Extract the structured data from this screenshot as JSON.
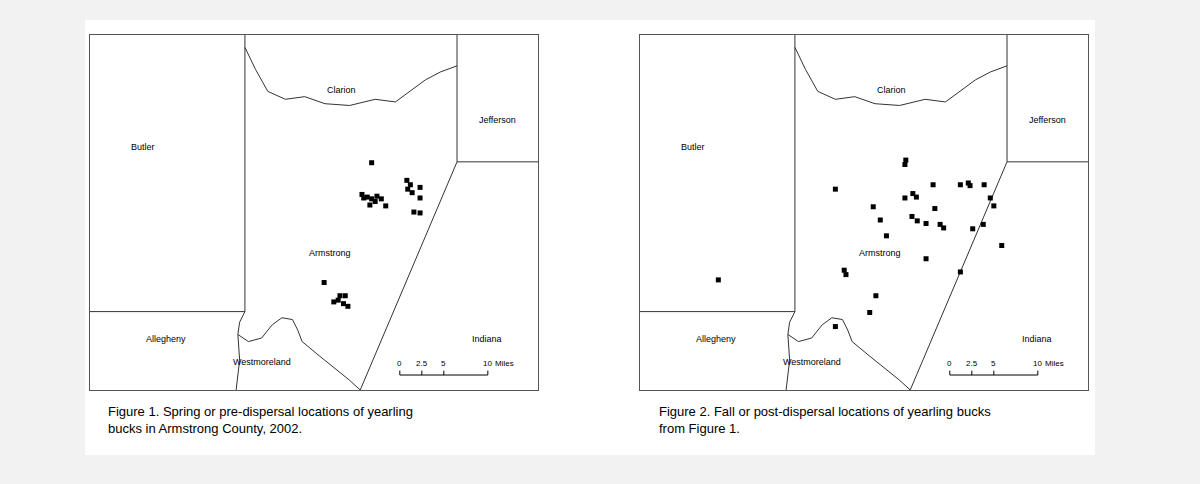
{
  "chart_data": [
    {
      "type": "scatter",
      "caption": [
        "Figure 1. Spring or pre-dispersal locations of yearling",
        "bucks in Armstrong County, 2002."
      ],
      "annotations": [
        "Clarion",
        "Jefferson",
        "Butler",
        "Armstrong",
        "Allegheny",
        "Westmoreland",
        "Indiana"
      ],
      "x": [
        32.0,
        30.9,
        31.5,
        32.0,
        32.6,
        33.1,
        31.8,
        33.6,
        31.1,
        32.4,
        36.0,
        36.4,
        37.5,
        36.6,
        37.5,
        36.8,
        37.5,
        36.1,
        26.6,
        28.4,
        27.7,
        28.2,
        28.8,
        29.3,
        29.0
      ],
      "y": [
        25.8,
        22.2,
        21.9,
        21.7,
        22.0,
        21.7,
        21.0,
        20.9,
        21.8,
        21.4,
        23.8,
        23.3,
        23.0,
        22.4,
        21.8,
        20.2,
        20.1,
        22.8,
        12.2,
        10.7,
        10.0,
        10.2,
        9.8,
        9.5,
        10.7
      ],
      "color": "#000000",
      "marker": "square",
      "xlim": [
        0,
        50.9
      ],
      "ylim": [
        0,
        40.3
      ],
      "tick_labels": false,
      "scale_bar": {
        "ticks": [
          0,
          2.5,
          5,
          10
        ],
        "unit": "Miles"
      }
    },
    {
      "type": "scatter",
      "caption": [
        "Figure 2. Fall or post-dispersal locations of yearling bucks",
        "from Figure 1."
      ],
      "annotations": [
        "Clarion",
        "Jefferson",
        "Butler",
        "Armstrong",
        "Allegheny",
        "Westmoreland",
        "Indiana"
      ],
      "x": [
        30.2,
        30.1,
        22.2,
        33.3,
        31.0,
        30.1,
        31.4,
        26.5,
        36.4,
        37.3,
        37.5,
        39.1,
        39.8,
        40.2,
        27.3,
        30.9,
        31.5,
        32.5,
        33.5,
        34.1,
        34.5,
        28.0,
        37.8,
        39.0,
        41.1,
        32.5,
        36.4,
        23.2,
        23.4,
        26.8,
        26.1,
        8.9,
        22.2
      ],
      "y": [
        26.1,
        25.6,
        22.8,
        23.3,
        22.3,
        21.8,
        21.9,
        20.8,
        23.3,
        23.5,
        23.2,
        23.3,
        21.8,
        20.9,
        19.3,
        19.7,
        19.2,
        18.9,
        20.6,
        18.8,
        18.4,
        17.5,
        18.3,
        18.8,
        16.4,
        14.9,
        13.4,
        13.6,
        13.1,
        10.7,
        8.8,
        12.5,
        7.2
      ],
      "color": "#000000",
      "marker": "square",
      "xlim": [
        0,
        50.9
      ],
      "ylim": [
        0,
        40.3
      ],
      "tick_labels": false,
      "scale_bar": {
        "ticks": [
          0,
          2.5,
          5,
          10
        ],
        "unit": "Miles"
      }
    }
  ]
}
